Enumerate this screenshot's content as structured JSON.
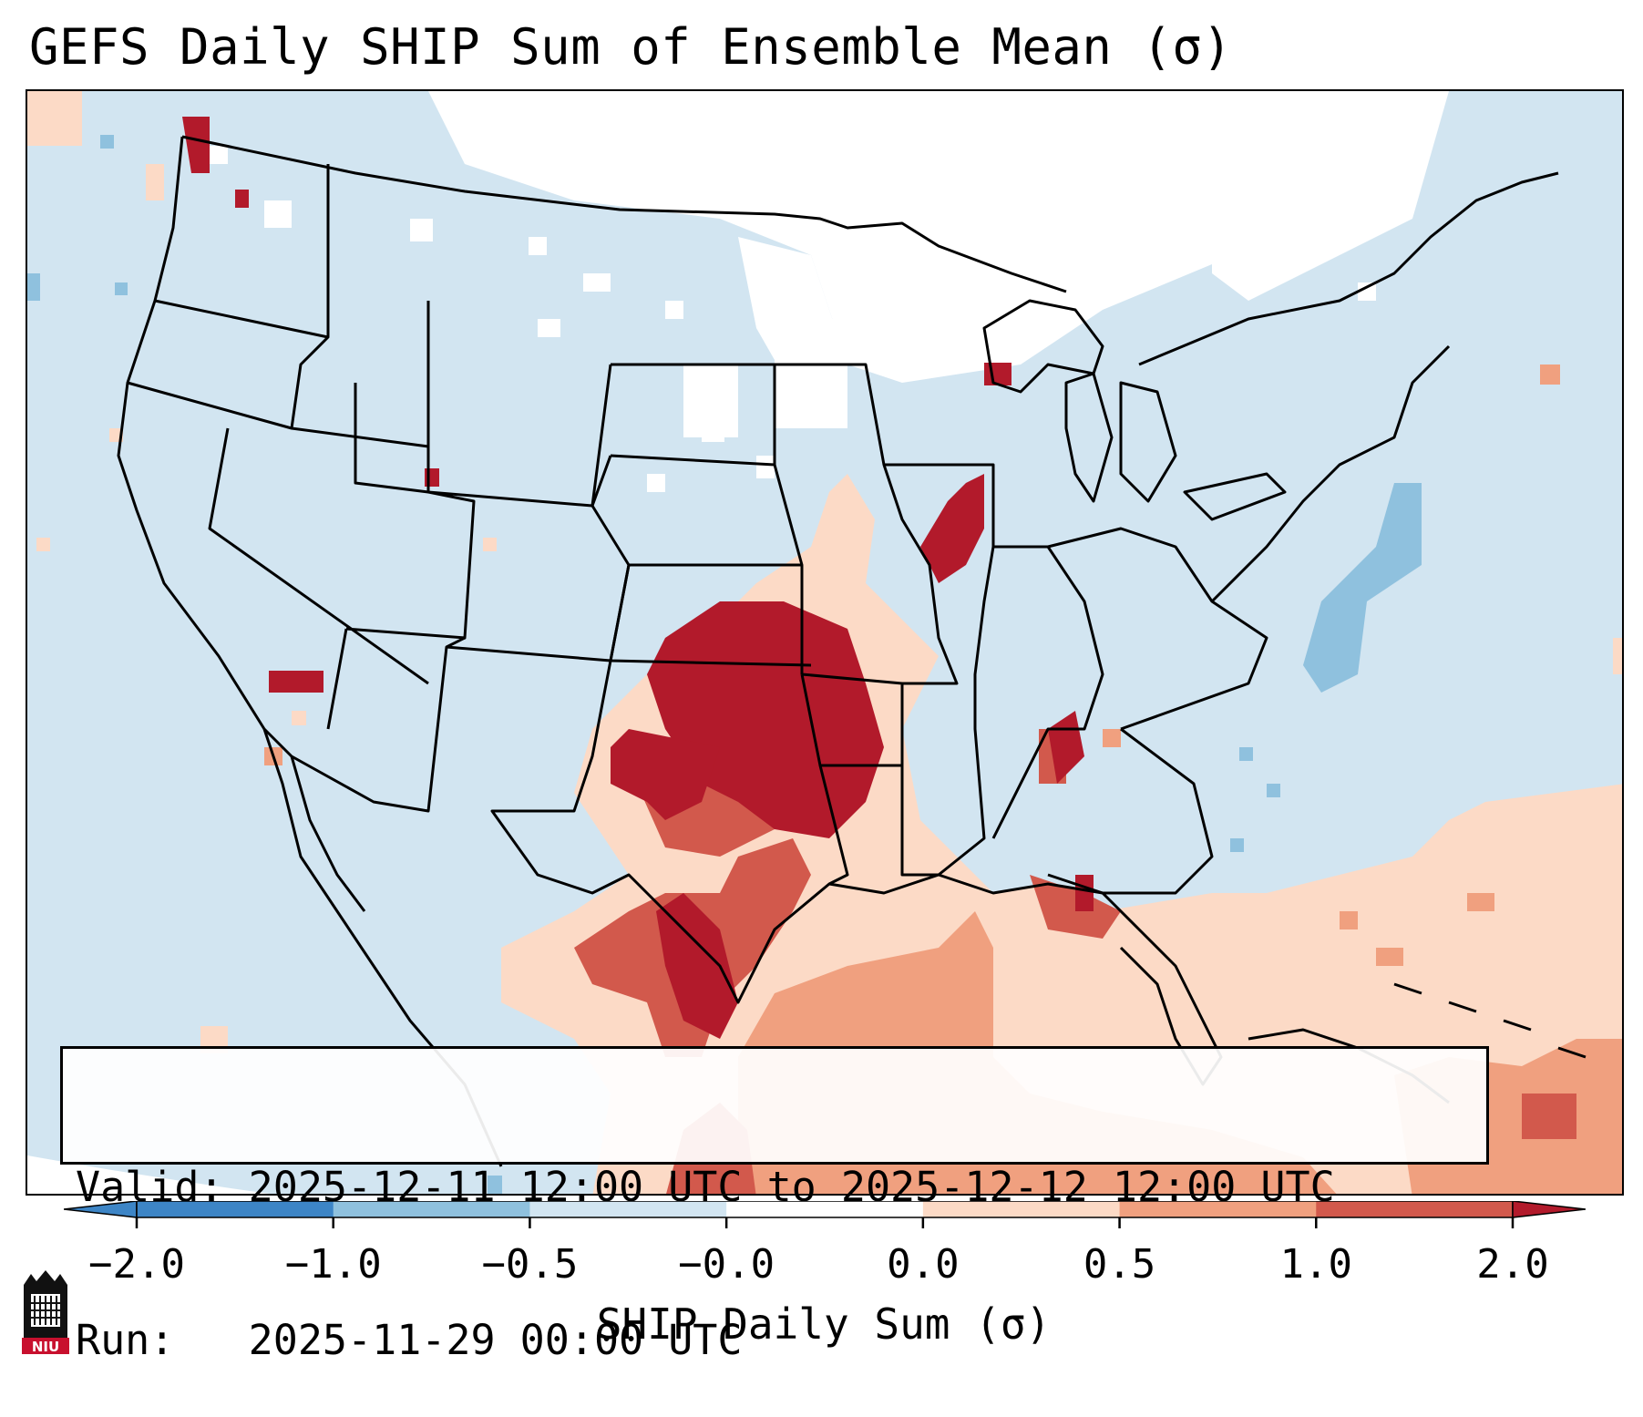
{
  "title": "GEFS Daily SHIP Sum of Ensemble Mean (σ)",
  "info": {
    "valid_line": "Valid: 2025-12-11 12:00 UTC to 2025-12-12 12:00 UTC",
    "run_line": "Run:   2025-11-29 00:00 UTC"
  },
  "colorbar": {
    "label": "SHIP Daily Sum (σ)",
    "ticks": [
      "−2.0",
      "−1.0",
      "−0.5",
      "−0.0",
      "0.0",
      "0.5",
      "1.0",
      "2.0"
    ],
    "colors": [
      "#3d85c6",
      "#8fc1de",
      "#d2e5f1",
      "#ffffff",
      "#fcdac6",
      "#f0a07f",
      "#d2594c",
      "#b21a2b"
    ],
    "extend": "both"
  },
  "map": {
    "projection": "lambert-conformal",
    "region": "CONUS",
    "colors": {
      "neg_small": "#d2e5f1",
      "neg_mid": "#8fc1de",
      "zero": "#ffffff",
      "pos_small": "#fcdac6",
      "pos_mid": "#f0a07f",
      "pos_high": "#d2594c",
      "pos_max": "#b21a2b"
    }
  },
  "logo": {
    "text": "NIU",
    "color": "#c8102e"
  }
}
